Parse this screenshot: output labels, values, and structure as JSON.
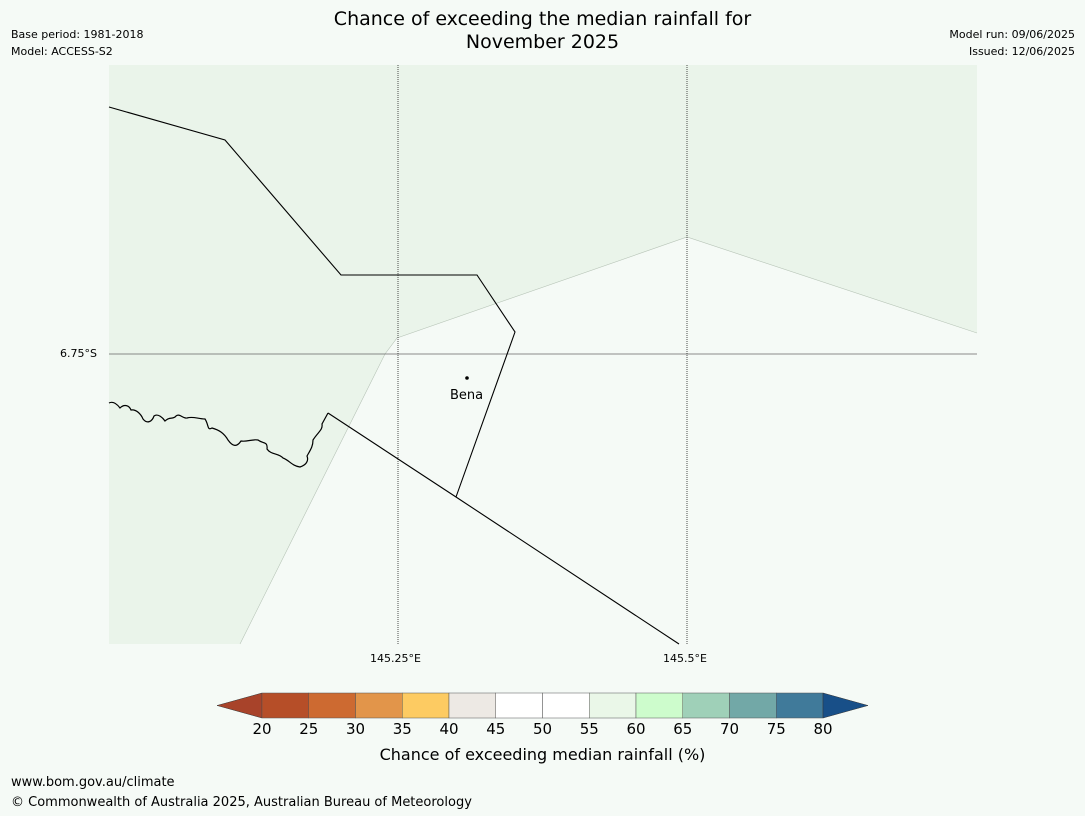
{
  "title": {
    "line1": "Chance of exceeding the median rainfall for",
    "line2": "November 2025"
  },
  "meta_left": {
    "base_period": "Base period: 1981-2018",
    "model": "Model: ACCESS-S2"
  },
  "meta_right": {
    "model_run": "Model run: 09/06/2025",
    "issued": "Issued: 12/06/2025"
  },
  "map": {
    "lat_label": "6.75°S",
    "lon_labels": [
      "145.25°E",
      "145.5°E"
    ],
    "place": "Bena",
    "shade_color": "#eaf4ea",
    "background_color": "#f5faf6"
  },
  "colorbar": {
    "ticks": [
      "20",
      "25",
      "30",
      "35",
      "40",
      "45",
      "50",
      "55",
      "60",
      "65",
      "70",
      "75",
      "80"
    ],
    "colors": [
      "#a8432a",
      "#b64e28",
      "#cd6a31",
      "#e2954a",
      "#fdcb62",
      "#ede9e4",
      "#ffffff",
      "#ffffff",
      "#eaf7e8",
      "#cdfccc",
      "#9fd0b8",
      "#72a8a7",
      "#407a9a",
      "#184f88"
    ],
    "label": "Chance of exceeding median rainfall (%)"
  },
  "footer": {
    "url": "www.bom.gov.au/climate",
    "copyright": "© Commonwealth of Australia 2025, Australian Bureau of Meteorology"
  }
}
